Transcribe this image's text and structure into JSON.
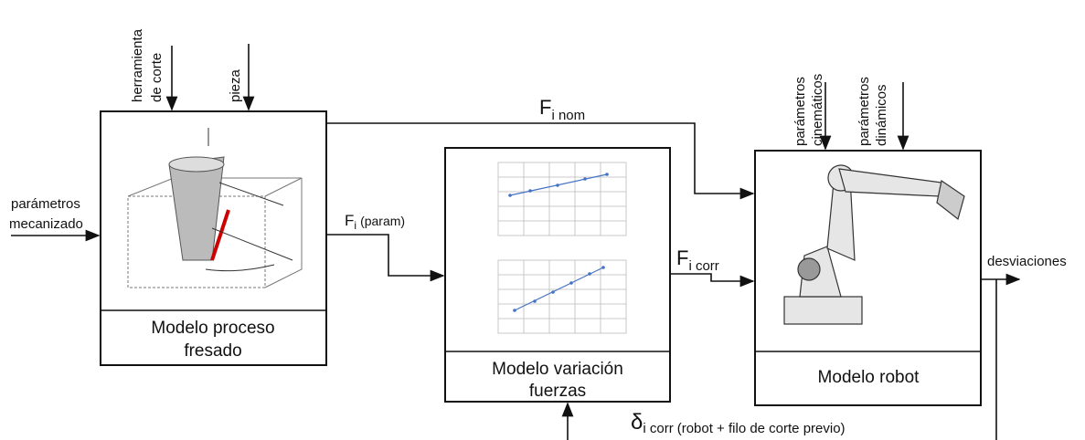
{
  "inputs": {
    "tool": [
      "herramienta",
      "de corte"
    ],
    "workpiece": "pieza",
    "machining": [
      "parámetros",
      "mecanizado"
    ],
    "kinematic": [
      "parámetros",
      "cinemáticos"
    ],
    "dynamic": [
      "parámetros",
      "dinámicos"
    ]
  },
  "blocks": [
    {
      "label": [
        "Modelo proceso",
        "fresado"
      ]
    },
    {
      "label": [
        "Modelo variación",
        "fuerzas"
      ]
    },
    {
      "label": [
        "Modelo robot"
      ]
    }
  ],
  "signals": {
    "nominal": {
      "symbol": "F",
      "subscript": "i nom"
    },
    "param": {
      "symbol": "F",
      "subscript": "i",
      "suffix": "(param)"
    },
    "corrected": {
      "symbol": "F",
      "subscript": "i corr"
    },
    "output": "desviaciones",
    "feedback": {
      "symbol": "δ",
      "subscript": "i corr",
      "suffix": "(robot + filo de corte previo)"
    }
  }
}
